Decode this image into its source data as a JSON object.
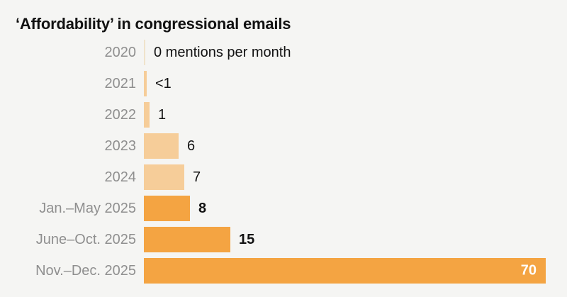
{
  "page": {
    "background": "#f5f5f3"
  },
  "chart_data": {
    "type": "bar",
    "orientation": "horizontal",
    "title": "‘Affordability’ in congressional emails",
    "xlabel": "mentions per month",
    "xlim": [
      0,
      70
    ],
    "grid": false,
    "legend": false,
    "categories": [
      "2020",
      "2021",
      "2022",
      "2023",
      "2024",
      "Jan.–May 2025",
      "June–Oct. 2025",
      "Nov.–Dec. 2025"
    ],
    "values": [
      0,
      0.5,
      1,
      6,
      7,
      8,
      15,
      70
    ],
    "value_labels": [
      "0 mentions per month",
      "<1",
      "1",
      "6",
      "7",
      "8",
      "15",
      "70"
    ],
    "rows": [
      {
        "label": "2020",
        "value": 0,
        "display": "0 mentions per month",
        "style": "zero",
        "bold": false,
        "inside": false
      },
      {
        "label": "2021",
        "value": 0.5,
        "display": "<1",
        "style": "light",
        "bold": false,
        "inside": false
      },
      {
        "label": "2022",
        "value": 1,
        "display": "1",
        "style": "light",
        "bold": false,
        "inside": false
      },
      {
        "label": "2023",
        "value": 6,
        "display": "6",
        "style": "light",
        "bold": false,
        "inside": false
      },
      {
        "label": "2024",
        "value": 7,
        "display": "7",
        "style": "light",
        "bold": false,
        "inside": false
      },
      {
        "label": "Jan.–May 2025",
        "value": 8,
        "display": "8",
        "style": "dark",
        "bold": true,
        "inside": false
      },
      {
        "label": "June–Oct. 2025",
        "value": 15,
        "display": "15",
        "style": "dark",
        "bold": true,
        "inside": false
      },
      {
        "label": "Nov.–Dec. 2025",
        "value": 70,
        "display": "70",
        "style": "dark",
        "bold": true,
        "inside": true
      }
    ]
  },
  "colors": {
    "background": "#f5f5f3",
    "title": "#121212",
    "category_label": "#8f8f8f",
    "value_label": "#121212",
    "value_label_inside": "#ffffff",
    "bar_light": "#f6cd99",
    "bar_dark": "#f4a442",
    "zero_tick": "#f0e3cb"
  }
}
